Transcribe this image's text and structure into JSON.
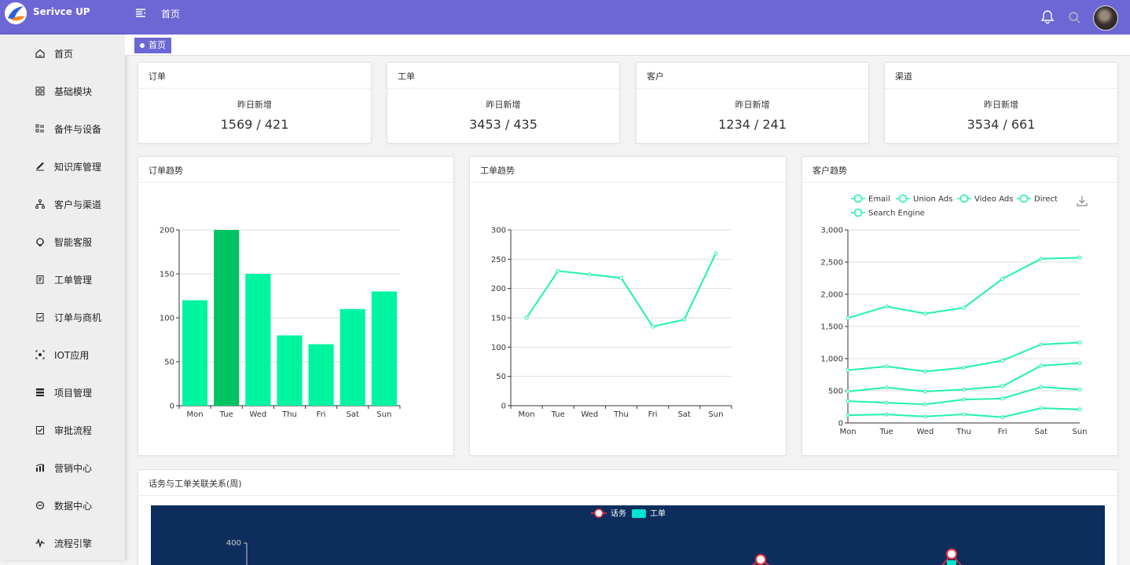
{
  "app": {
    "name": "Serivce UP",
    "top_title": "首页"
  },
  "sidebar": {
    "items": [
      {
        "label": "首页",
        "icon": "home-icon"
      },
      {
        "label": "基础模块",
        "icon": "grid-icon"
      },
      {
        "label": "备件与设备",
        "icon": "list-icon"
      },
      {
        "label": "知识库管理",
        "icon": "pen-icon"
      },
      {
        "label": "客户与渠道",
        "icon": "tree-icon"
      },
      {
        "label": "智能客服",
        "icon": "support-icon"
      },
      {
        "label": "工单管理",
        "icon": "clipboard-icon"
      },
      {
        "label": "订单与商机",
        "icon": "order-icon"
      },
      {
        "label": "IOT应用",
        "icon": "iot-icon"
      },
      {
        "label": "项目管理",
        "icon": "project-icon"
      },
      {
        "label": "审批流程",
        "icon": "approve-icon"
      },
      {
        "label": "营销中心",
        "icon": "marketing-icon"
      },
      {
        "label": "数据中心",
        "icon": "data-icon"
      },
      {
        "label": "流程引擎",
        "icon": "flow-icon"
      }
    ]
  },
  "tabs": [
    {
      "label": "首页"
    }
  ],
  "stats": [
    {
      "title": "订单",
      "subtitle": "昨日新增",
      "value": "1569 / 421"
    },
    {
      "title": "工单",
      "subtitle": "昨日新增",
      "value": "3453 / 435"
    },
    {
      "title": "客户",
      "subtitle": "昨日新增",
      "value": "1234 / 241"
    },
    {
      "title": "渠道",
      "subtitle": "昨日新增",
      "value": "3534 / 661"
    }
  ],
  "charts": {
    "order_title": "订单趋势",
    "ticket_title": "工单趋势",
    "customer_title": "客户趋势",
    "relation_title": "话务与工单关联关系(周)"
  },
  "chart_data": [
    {
      "type": "bar",
      "categories": [
        "Mon",
        "Tue",
        "Wed",
        "Thu",
        "Fri",
        "Sat",
        "Sun"
      ],
      "values": [
        120,
        200,
        150,
        80,
        70,
        110,
        130
      ],
      "highlight_index": 1,
      "ylim": [
        0,
        200
      ],
      "yticks": [
        0,
        50,
        100,
        150,
        200
      ],
      "colors": {
        "bar": "#00f5a0",
        "highlight": "#00c462"
      }
    },
    {
      "type": "line",
      "categories": [
        "Mon",
        "Tue",
        "Wed",
        "Thu",
        "Fri",
        "Sat",
        "Sun"
      ],
      "values": [
        150,
        230,
        224,
        218,
        135,
        147,
        260
      ],
      "ylim": [
        0,
        300
      ],
      "yticks": [
        0,
        50,
        100,
        150,
        200,
        250,
        300
      ],
      "colors": {
        "line": "#1ff2b0"
      }
    },
    {
      "type": "line",
      "categories": [
        "Mon",
        "Tue",
        "Wed",
        "Thu",
        "Fri",
        "Sat",
        "Sun"
      ],
      "ylim": [
        0,
        3000
      ],
      "yticks": [
        "0",
        "500",
        "1,000",
        "1,500",
        "2,000",
        "2,500",
        "3,000"
      ],
      "legend": [
        "Email",
        "Union Ads",
        "Video Ads",
        "Direct",
        "Search Engine"
      ],
      "series": [
        {
          "name": "Email",
          "values": [
            120,
            132,
            101,
            134,
            90,
            230,
            210
          ]
        },
        {
          "name": "Union Ads",
          "values": [
            340,
            314,
            290,
            364,
            380,
            560,
            520
          ]
        },
        {
          "name": "Video Ads",
          "values": [
            490,
            550,
            490,
            520,
            570,
            890,
            930
          ]
        },
        {
          "name": "Direct",
          "values": [
            820,
            880,
            800,
            860,
            970,
            1220,
            1250
          ]
        },
        {
          "name": "Search Engine",
          "values": [
            1630,
            1810,
            1700,
            1790,
            2240,
            2550,
            2570
          ]
        }
      ],
      "colors": {
        "line": "#1ff2b0"
      }
    },
    {
      "type": "line",
      "legend": [
        "话务",
        "工单"
      ],
      "ytick_visible": "400",
      "colors": {
        "background": "#0d2d5c",
        "marker": "#ff3344",
        "bar": "#00e5d0"
      }
    }
  ]
}
